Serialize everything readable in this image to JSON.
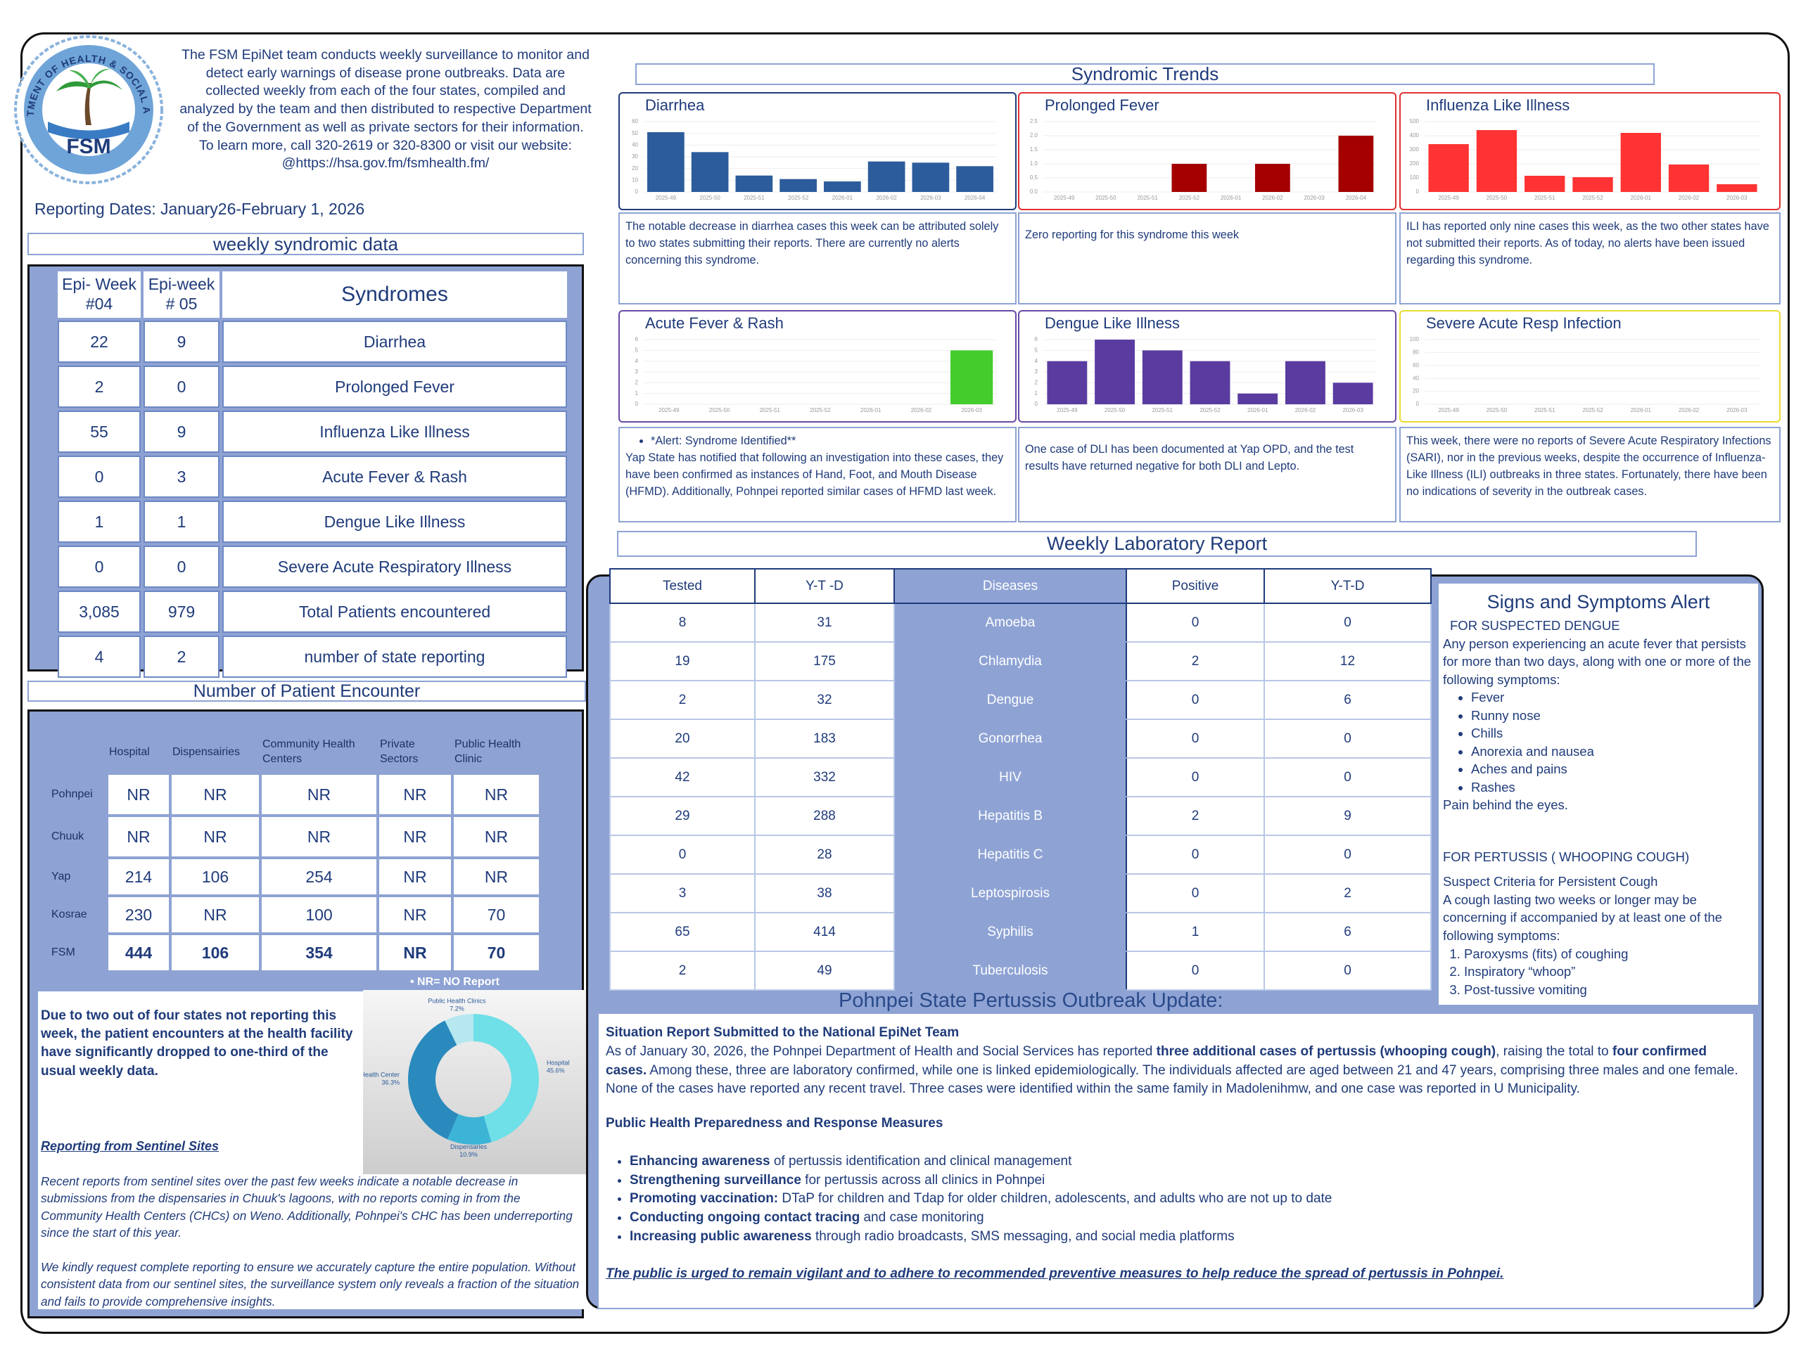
{
  "header": {
    "logo_ring": "DEPARTMENT OF HEALTH & SOCIAL AFFAIRS",
    "logo_text": "FSM",
    "description": "The FSM EpiNet team conducts weekly surveillance to monitor and detect early warnings of disease prone outbreaks. Data are collected weekly from each of the four states, compiled and analyzed by the team and then distributed to respective Department of the Government as well as private sectors for their information.",
    "contact": "To learn more, call 320-2619 or 320-8300 or visit our website:",
    "website": "@https://hsa.gov.fm/fsmhealth.fm/"
  },
  "reporting_dates": "Reporting Dates: January26-February 1, 2026",
  "weekly_syndromic_data": {
    "title": "weekly syndromic data",
    "columns": [
      [
        "Epi- Week",
        "#04"
      ],
      [
        "Epi-week",
        "# 05"
      ],
      [
        "Syndromes"
      ]
    ],
    "rows": [
      [
        "22",
        "9",
        "Diarrhea"
      ],
      [
        "2",
        "0",
        "Prolonged Fever"
      ],
      [
        "55",
        "9",
        "Influenza Like Illness"
      ],
      [
        "0",
        "3",
        "Acute Fever & Rash"
      ],
      [
        "1",
        "1",
        "Dengue Like Illness"
      ],
      [
        "0",
        "0",
        "Severe Acute Respiratory Illness"
      ],
      [
        "3,085",
        "979",
        "Total Patients encountered"
      ],
      [
        "4",
        "2",
        "number of state reporting"
      ]
    ]
  },
  "patient_encounter": {
    "title": "Number of Patient Encounter",
    "columns": [
      "Hospital",
      "Dispensairies",
      "Community Health Centers",
      "Private Sectors",
      "Public Health Clinic"
    ],
    "rows": [
      {
        "label": "Pohnpei",
        "cells": [
          "NR",
          "NR",
          "NR",
          "NR",
          "NR"
        ]
      },
      {
        "label": "Chuuk",
        "cells": [
          "NR",
          "NR",
          "NR",
          "NR",
          "NR"
        ]
      },
      {
        "label": "Yap",
        "cells": [
          "214",
          "106",
          "254",
          "NR",
          "NR"
        ]
      },
      {
        "label": "Kosrae",
        "cells": [
          "230",
          "NR",
          "100",
          "NR",
          "70"
        ]
      },
      {
        "label": "FSM",
        "cells": [
          "444",
          "106",
          "354",
          "NR",
          "70"
        ]
      }
    ],
    "note": "• NR= NO Report",
    "summary": "Due to two out of four states not reporting this week, the patient encounters at the health facility have significantly dropped to one-third of the usual weekly data.",
    "sentinel_heading": "Reporting from Sentinel Sites",
    "paragraphs": [
      "Recent reports from sentinel sites over the past few weeks indicate a notable decrease in submissions from the dispensaries in Chuuk's lagoons, with no reports coming in from the Community Health Centers (CHCs) on Weno. Additionally, Pohnpei's CHC has been underreporting since the start of this year.",
      "We kindly request complete reporting to ensure we accurately capture the entire population. Without consistent data from our sentinel sites, the surveillance system only reveals a fraction of the situation and fails to provide comprehensive insights."
    ]
  },
  "syndromic_trends": {
    "title": "Syndromic Trends",
    "comments": [
      {
        "paragraphs": [
          "The notable decrease in diarrhea cases this week can be attributed solely to two states submitting their reports. There are currently no alerts concerning this syndrome."
        ]
      },
      {
        "paragraphs": [
          "Zero reporting for this syndrome this week"
        ]
      },
      {
        "paragraphs": [
          "ILI has reported only nine cases this week, as the two other states have not submitted their reports. As of today, no alerts have been issued regarding this syndrome."
        ]
      },
      {
        "alert": "*Alert: Syndrome Identified**",
        "paragraphs": [
          "Yap State has notified that following an investigation into these cases, they have been confirmed as instances of Hand, Foot, and Mouth Disease (HFMD). Additionally, Pohnpei reported similar cases of HFMD last week."
        ]
      },
      {
        "paragraphs": [
          "One case of DLI has been documented at Yap OPD, and the test results have returned negative for both DLI and Lepto."
        ]
      },
      {
        "paragraphs": [
          "This week, there were no reports of Severe Acute Respiratory Infections (SARI), nor in the previous weeks, despite the occurrence of Influenza-Like Illness (ILI) outbreaks in three states. Fortunately, there have been no indications of severity in the outbreak cases."
        ]
      }
    ]
  },
  "chart_data": [
    {
      "type": "bar",
      "title": "Diarrhea",
      "categories": [
        "2025-49",
        "2025-50",
        "2025-51",
        "2025-52",
        "2026-01",
        "2026-02",
        "2026-03",
        "2026-04"
      ],
      "values": [
        51,
        34,
        14,
        11,
        9,
        26,
        25,
        22
      ],
      "ylim": [
        0,
        60
      ],
      "yticks": [
        0,
        10,
        20,
        30,
        40,
        50,
        60
      ],
      "color": "#2c5c9c",
      "border_color": "#1f3b7a"
    },
    {
      "type": "bar",
      "title": "Prolonged Fever",
      "categories": [
        "2025-49",
        "2025-50",
        "2025-51",
        "2025-52",
        "2026-01",
        "2026-02",
        "2026-03",
        "2026-04"
      ],
      "values": [
        0,
        0,
        0,
        1,
        0,
        1,
        0,
        2
      ],
      "ylim": [
        0,
        2.5
      ],
      "yticks": [
        {
          "value": 0,
          "label": "0.0"
        },
        {
          "value": 0.5,
          "label": "0.5"
        },
        {
          "value": 1,
          "label": "1.0"
        },
        {
          "value": 1.5,
          "label": "1.5"
        },
        {
          "value": 2,
          "label": "2.0"
        },
        {
          "value": 2.5,
          "label": "2.5"
        }
      ],
      "color": "#a50000",
      "border_color": "#e03030"
    },
    {
      "type": "bar",
      "title": "Influenza Like Illness",
      "categories": [
        "2025-49",
        "2025-50",
        "2025-51",
        "2025-52",
        "2026-01",
        "2026-02",
        "2026-03"
      ],
      "values": [
        340,
        440,
        115,
        105,
        420,
        195,
        55
      ],
      "ylim": [
        0,
        500
      ],
      "yticks": [
        0,
        100,
        200,
        300,
        400,
        500
      ],
      "color": "#ff3333",
      "border_color": "#e03030"
    },
    {
      "type": "bar",
      "title": "Acute Fever & Rash",
      "categories": [
        "2025-49",
        "2025-50",
        "2025-51",
        "2025-52",
        "2026-01",
        "2026-02",
        "2026-03"
      ],
      "values": [
        0,
        0,
        0,
        0,
        0,
        0,
        5
      ],
      "ylim": [
        0,
        6
      ],
      "yticks": [
        0,
        1,
        2,
        3,
        4,
        5,
        6
      ],
      "color": "#44cc2c",
      "border_color": "#6a4aa8"
    },
    {
      "type": "bar",
      "title": "Dengue Like Illness",
      "categories": [
        "2025-49",
        "2025-50",
        "2025-51",
        "2025-52",
        "2026-01",
        "2026-02",
        "2026-03"
      ],
      "values": [
        4,
        6,
        5,
        4,
        1,
        4,
        2
      ],
      "ylim": [
        0,
        6
      ],
      "yticks": [
        0,
        1,
        2,
        3,
        4,
        5,
        6
      ],
      "color": "#5a3ca0",
      "border_color": "#6a4aa8"
    },
    {
      "type": "bar",
      "title": "Severe Acute Resp Infection",
      "categories": [
        "2025-49",
        "2025-50",
        "2025-51",
        "2025-52",
        "2026-01",
        "2026-02",
        "2026-03"
      ],
      "values": [
        0,
        0,
        0,
        0,
        0,
        0,
        0
      ],
      "ylim": [
        0,
        100
      ],
      "yticks": [
        0,
        20,
        40,
        60,
        80,
        100
      ],
      "color": "#e6c800",
      "border_color": "#e8dc30"
    },
    {
      "type": "pie",
      "categories": [
        "Hospital",
        "Dispensaries",
        "Community Health Center",
        "Public Health Clinics"
      ],
      "values": [
        45.6,
        10.9,
        36.3,
        7.2
      ],
      "value_labels": [
        "45.6%",
        "10.9%",
        "36.3%",
        "7.2%"
      ],
      "colors": [
        "#6fdfe8",
        "#3cb4d6",
        "#2a8abd",
        "#b7e8ef"
      ]
    }
  ],
  "laboratory_report": {
    "title": "Weekly Laboratory Report",
    "columns": [
      "Tested",
      "Y-T -D",
      "Diseases",
      "Positive",
      "Y-T-D"
    ],
    "rows": [
      [
        "8",
        "31",
        "Amoeba",
        "0",
        "0"
      ],
      [
        "19",
        "175",
        "Chlamydia",
        "2",
        "12"
      ],
      [
        "2",
        "32",
        "Dengue",
        "0",
        "6"
      ],
      [
        "20",
        "183",
        "Gonorrhea",
        "0",
        "0"
      ],
      [
        "42",
        "332",
        "HIV",
        "0",
        "0"
      ],
      [
        "29",
        "288",
        "Hepatitis B",
        "2",
        "9"
      ],
      [
        "0",
        "28",
        "Hepatitis C",
        "0",
        "0"
      ],
      [
        "3",
        "38",
        "Leptospirosis",
        "0",
        "2"
      ],
      [
        "65",
        "414",
        "Syphilis",
        "1",
        "6"
      ],
      [
        "2",
        "49",
        "Tuberculosis",
        "0",
        "0"
      ]
    ]
  },
  "signs_alert": {
    "title": "Signs and Symptoms Alert",
    "dengue_heading": "FOR SUSPECTED DENGUE",
    "dengue_text": "Any person experiencing an acute fever that persists for more than two days, along with one or more of the following symptoms:",
    "dengue_symptoms": [
      "Fever",
      "Runny nose",
      "Chills",
      "Anorexia and nausea",
      "Aches and pains",
      "Rashes"
    ],
    "dengue_closing": "Pain behind the eyes.",
    "pertussis_heading": "FOR PERTUSSIS ( WHOOPING COUGH)",
    "pertussis_criteria": "Suspect Criteria for Persistent Cough",
    "pertussis_text": "A cough lasting two weeks or longer may be concerning if accompanied by at least one of the following symptoms:",
    "pertussis_symptoms": [
      "Paroxysms (fits) of coughing",
      "Inspiratory “whoop”",
      "Post-tussive vomiting"
    ]
  },
  "outbreak": {
    "title": "Pohnpei State Pertussis Outbreak Update:",
    "situation_heading": "Situation Report Submitted to the National EpiNet Team",
    "situation": [
      {
        "text": "As of January 30, 2026, the Pohnpei Department of Health and Social Services has reported "
      },
      {
        "text": "three additional cases of pertussis (whooping cough)",
        "bold": true
      },
      {
        "text": ", raising the total to "
      },
      {
        "text": "four confirmed cases.",
        "bold": true
      },
      {
        "text": " Among these, three are laboratory confirmed, while one is linked epidemiologically. The individuals affected are aged between 21 and 47 years, comprising three males and one female. None of the cases have reported any recent travel. Three cases were identified within the same family in Madolenihmw, and one case was reported in U Municipality."
      }
    ],
    "measures_heading": "Public Health Preparedness and Response Measures",
    "measures": [
      {
        "lead": "Enhancing awareness",
        "text": " of pertussis identification and clinical management"
      },
      {
        "lead": "Strengthening surveillance",
        "text": " for pertussis across all clinics in Pohnpei"
      },
      {
        "lead": "Promoting vaccination:",
        "text": " DTaP for children and Tdap for older children, adolescents, and adults who are not up to date"
      },
      {
        "lead": "Conducting ongoing contact tracing",
        "text": " and case monitoring"
      },
      {
        "lead": "Increasing public awareness",
        "text": " through radio broadcasts, SMS messaging, and social media platforms"
      }
    ],
    "closing": "The public is urged to remain vigilant and to adhere to recommended preventive measures to help reduce the spread of pertussis in Pohnpei."
  }
}
